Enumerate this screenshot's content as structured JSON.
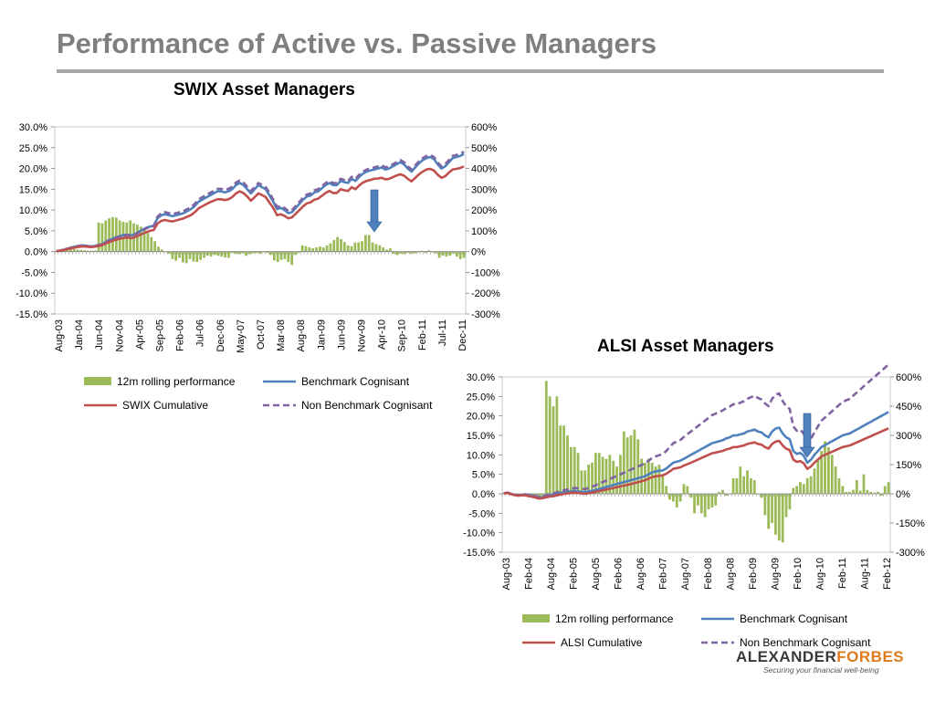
{
  "slide": {
    "title": "Performance of Active vs. Passive Managers"
  },
  "logo": {
    "brand_part1": "ALEXANDER",
    "brand_part2": "FORBES",
    "tagline": "Securing your financial well-being"
  },
  "chart_data": [
    {
      "type": "bar+line",
      "title": "SWIX Asset Managers",
      "x_labels": [
        "Aug-03",
        "Jan-04",
        "Jun-04",
        "Nov-04",
        "Apr-05",
        "Sep-05",
        "Feb-06",
        "Jul-06",
        "Dec-06",
        "May-07",
        "Oct-07",
        "Mar-08",
        "Aug-08",
        "Jan-09",
        "Jun-09",
        "Nov-09",
        "Apr-10",
        "Sep-10",
        "Feb-11",
        "Jul-11",
        "Dec-11"
      ],
      "y_left": {
        "range": [
          -15,
          30
        ],
        "ticks": [
          "-15.0%",
          "-10.0%",
          "-5.0%",
          "0.0%",
          "5.0%",
          "10.0%",
          "15.0%",
          "20.0%",
          "25.0%",
          "30.0%"
        ]
      },
      "y_right": {
        "range": [
          -300,
          600
        ],
        "ticks": [
          "-300%",
          "-200%",
          "-100%",
          "0%",
          "100%",
          "200%",
          "300%",
          "400%",
          "500%",
          "600%"
        ]
      },
      "annotation": "arrow pointing down near Apr-10",
      "series": [
        {
          "name": "12m rolling performance",
          "type": "bar",
          "axis": "left",
          "color": "#9bbb59",
          "values": [
            0.2,
            0.3,
            0.4,
            0.6,
            0.7,
            0.6,
            0.5,
            0.4,
            0.3,
            0.2,
            0.2,
            0.3,
            7.0,
            6.8,
            7.5,
            8.0,
            8.3,
            8.2,
            7.5,
            7.2,
            7.0,
            7.5,
            6.8,
            6.5,
            6.0,
            5.5,
            4.5,
            3.5,
            2.5,
            1.2,
            0.5,
            0.0,
            -0.5,
            -1.8,
            -2.2,
            -1.5,
            -2.6,
            -2.8,
            -1.8,
            -2.4,
            -2.5,
            -2.0,
            -1.5,
            -1.0,
            -1.2,
            -0.8,
            -1.0,
            -1.2,
            -1.4,
            -1.5,
            -0.3,
            -0.5,
            -0.6,
            -0.4,
            -1.0,
            -0.6,
            -0.4,
            -0.3,
            -0.5,
            -0.2,
            -0.3,
            -0.8,
            -2.1,
            -2.5,
            -2.0,
            -1.8,
            -2.5,
            -3.2,
            -0.8,
            -0.3,
            1.5,
            1.3,
            1.0,
            0.8,
            1.0,
            1.2,
            1.0,
            1.5,
            2.0,
            2.8,
            3.5,
            3.0,
            2.3,
            1.5,
            1.3,
            2.2,
            2.2,
            2.5,
            4.0,
            4.0,
            2.2,
            1.8,
            1.5,
            1.0,
            0.5,
            0.8,
            -0.5,
            -0.8,
            -0.5,
            -0.6,
            -0.3,
            -0.5,
            -0.4,
            -0.2,
            0.2,
            -0.3,
            0.3,
            -0.2,
            -0.4,
            -1.5,
            -1.0,
            -1.2,
            -1.0,
            -0.5,
            -1.2,
            -1.8,
            -1.5
          ]
        },
        {
          "name": "Benchmark Cognisant",
          "type": "line",
          "axis": "right",
          "color": "#4f81bd",
          "values": [
            2,
            5,
            10,
            15,
            20,
            25,
            28,
            30,
            28,
            25,
            27,
            30,
            35,
            45,
            55,
            62,
            70,
            75,
            80,
            82,
            78,
            85,
            95,
            105,
            115,
            120,
            125,
            160,
            175,
            180,
            175,
            170,
            175,
            180,
            185,
            195,
            205,
            220,
            240,
            250,
            260,
            270,
            280,
            290,
            290,
            285,
            290,
            300,
            320,
            330,
            320,
            300,
            280,
            300,
            320,
            310,
            300,
            270,
            240,
            205,
            210,
            200,
            185,
            190,
            210,
            230,
            250,
            265,
            270,
            285,
            290,
            305,
            320,
            330,
            320,
            320,
            340,
            335,
            330,
            350,
            340,
            360,
            375,
            385,
            390,
            395,
            400,
            405,
            395,
            400,
            410,
            420,
            430,
            420,
            400,
            385,
            405,
            425,
            440,
            450,
            455,
            445,
            420,
            400,
            410,
            430,
            450,
            455,
            460,
            470
          ]
        },
        {
          "name": "SWIX Cumulative",
          "type": "line",
          "axis": "right",
          "color": "#c0504d",
          "values": [
            2,
            5,
            8,
            12,
            16,
            20,
            23,
            25,
            24,
            22,
            23,
            26,
            30,
            38,
            45,
            52,
            58,
            62,
            66,
            68,
            65,
            70,
            78,
            86,
            94,
            100,
            104,
            135,
            148,
            152,
            148,
            145,
            150,
            155,
            160,
            168,
            176,
            190,
            208,
            218,
            228,
            237,
            245,
            252,
            252,
            248,
            252,
            262,
            280,
            290,
            282,
            265,
            245,
            262,
            280,
            272,
            262,
            235,
            210,
            175,
            180,
            172,
            160,
            165,
            182,
            200,
            218,
            232,
            237,
            250,
            255,
            268,
            282,
            292,
            282,
            282,
            300,
            295,
            292,
            310,
            300,
            318,
            332,
            340,
            345,
            350,
            352,
            355,
            348,
            350,
            358,
            366,
            372,
            365,
            350,
            338,
            355,
            372,
            385,
            395,
            398,
            390,
            370,
            355,
            362,
            380,
            395,
            398,
            402,
            410
          ]
        },
        {
          "name": "Non Benchmark Cognisant",
          "type": "line-dashed",
          "axis": "right",
          "color": "#8064a2",
          "values": [
            2,
            5,
            10,
            15,
            20,
            25,
            28,
            30,
            28,
            25,
            27,
            30,
            35,
            44,
            54,
            60,
            68,
            73,
            78,
            80,
            76,
            83,
            92,
            102,
            112,
            118,
            123,
            168,
            185,
            190,
            185,
            180,
            185,
            190,
            195,
            205,
            215,
            230,
            252,
            262,
            272,
            282,
            292,
            302,
            302,
            298,
            302,
            312,
            332,
            342,
            332,
            312,
            292,
            310,
            330,
            320,
            310,
            282,
            250,
            215,
            220,
            210,
            195,
            200,
            220,
            240,
            260,
            275,
            280,
            295,
            300,
            315,
            330,
            340,
            330,
            330,
            350,
            345,
            340,
            360,
            350,
            370,
            385,
            395,
            400,
            405,
            410,
            415,
            405,
            410,
            420,
            430,
            440,
            430,
            410,
            395,
            415,
            435,
            450,
            460,
            465,
            455,
            430,
            410,
            420,
            440,
            460,
            465,
            470,
            480
          ]
        }
      ],
      "legend": [
        "12m rolling performance",
        "Benchmark Cognisant",
        "SWIX Cumulative",
        "Non Benchmark Cognisant"
      ]
    },
    {
      "type": "bar+line",
      "title": "ALSI Asset Managers",
      "x_labels": [
        "Aug-03",
        "Feb-04",
        "Aug-04",
        "Feb-05",
        "Aug-05",
        "Feb-06",
        "Aug-06",
        "Feb-07",
        "Aug-07",
        "Feb-08",
        "Aug-08",
        "Feb-09",
        "Aug-09",
        "Feb-10",
        "Aug-10",
        "Feb-11",
        "Aug-11",
        "Feb-12"
      ],
      "y_left": {
        "range": [
          -15,
          30
        ],
        "ticks": [
          "-15.0%",
          "-10.0%",
          "-5.0%",
          "0.0%",
          "5.0%",
          "10.0%",
          "15.0%",
          "20.0%",
          "25.0%",
          "30.0%"
        ]
      },
      "y_right": {
        "range": [
          -300,
          600
        ],
        "ticks": [
          "-300%",
          "-150%",
          "0%",
          "150%",
          "300%",
          "450%",
          "600%"
        ]
      },
      "annotation": "arrow pointing down near Aug-10",
      "series": [
        {
          "name": "12m rolling performance",
          "type": "bar",
          "axis": "left",
          "color": "#9bbb59",
          "values": [
            0.3,
            0.4,
            0.2,
            -0.3,
            -0.5,
            -0.4,
            -0.3,
            -0.2,
            -0.4,
            -0.6,
            -0.8,
            -1.0,
            29.0,
            25.0,
            22.5,
            25.0,
            17.5,
            17.5,
            15.0,
            12.0,
            12.0,
            10.5,
            6.0,
            6.0,
            7.5,
            8.0,
            10.5,
            10.5,
            9.5,
            9.0,
            10.0,
            8.5,
            7.0,
            10.0,
            16.0,
            14.5,
            15.0,
            16.5,
            14.0,
            9.0,
            8.0,
            9.0,
            8.0,
            7.0,
            7.5,
            5.0,
            2.0,
            -1.5,
            -2.0,
            -3.5,
            -2.0,
            2.5,
            2.0,
            -1.0,
            -5.0,
            -3.0,
            -5.0,
            -6.0,
            -4.0,
            -3.5,
            -3.0,
            0.5,
            1.0,
            -0.5,
            0.0,
            4.0,
            4.0,
            7.0,
            4.5,
            6.0,
            4.0,
            3.5,
            0.0,
            -1.0,
            -5.5,
            -9.0,
            -7.5,
            -10.5,
            -12.0,
            -12.5,
            -6.0,
            -4.0,
            1.5,
            2.0,
            3.0,
            2.5,
            4.0,
            4.5,
            6.5,
            9.0,
            11.0,
            13.5,
            12.0,
            10.0,
            7.0,
            4.0,
            2.0,
            0.5,
            0.5,
            1.0,
            3.5,
            0.8,
            5.0,
            1.0,
            0.5,
            0.3,
            0.5,
            -0.5,
            2.0,
            3.0
          ]
        },
        {
          "name": "Benchmark Cognisant",
          "type": "line",
          "axis": "right",
          "color": "#4f81bd",
          "values": [
            3,
            5,
            0,
            -5,
            -8,
            -6,
            -5,
            -8,
            -10,
            -15,
            -20,
            -18,
            -12,
            -8,
            -5,
            0,
            5,
            8,
            10,
            12,
            15,
            12,
            10,
            8,
            12,
            15,
            20,
            25,
            30,
            35,
            40,
            45,
            50,
            55,
            60,
            65,
            70,
            75,
            80,
            85,
            90,
            100,
            110,
            115,
            118,
            120,
            130,
            145,
            160,
            165,
            170,
            180,
            190,
            200,
            210,
            220,
            230,
            240,
            250,
            260,
            265,
            270,
            275,
            285,
            290,
            300,
            300,
            305,
            310,
            320,
            325,
            330,
            320,
            315,
            300,
            290,
            320,
            335,
            340,
            310,
            290,
            280,
            220,
            205,
            210,
            195,
            160,
            175,
            200,
            220,
            240,
            250,
            260,
            270,
            280,
            290,
            300,
            305,
            310,
            320,
            330,
            340,
            350,
            360,
            370,
            380,
            390,
            400,
            410,
            420
          ]
        },
        {
          "name": "ALSI Cumulative",
          "type": "line",
          "axis": "right",
          "color": "#c0504d",
          "values": [
            2,
            4,
            -2,
            -6,
            -10,
            -8,
            -8,
            -12,
            -15,
            -20,
            -25,
            -22,
            -18,
            -14,
            -12,
            -8,
            -4,
            0,
            2,
            4,
            6,
            4,
            2,
            0,
            3,
            6,
            10,
            14,
            18,
            22,
            26,
            30,
            34,
            38,
            42,
            46,
            50,
            55,
            60,
            65,
            70,
            78,
            86,
            90,
            92,
            95,
            103,
            115,
            128,
            132,
            136,
            145,
            152,
            160,
            168,
            176,
            184,
            192,
            200,
            208,
            212,
            216,
            220,
            228,
            232,
            240,
            240,
            244,
            248,
            256,
            260,
            264,
            256,
            252,
            240,
            232,
            256,
            268,
            272,
            248,
            232,
            224,
            176,
            164,
            168,
            156,
            128,
            140,
            160,
            176,
            192,
            200,
            208,
            216,
            224,
            232,
            240,
            244,
            248,
            256,
            264,
            272,
            280,
            288,
            296,
            304,
            312,
            320,
            328,
            336
          ]
        },
        {
          "name": "Non Benchmark Cognisant",
          "type": "line-dashed",
          "axis": "right",
          "color": "#8064a2",
          "values": [
            3,
            6,
            2,
            -4,
            -8,
            -5,
            -3,
            -5,
            -8,
            -12,
            -16,
            -14,
            -8,
            -2,
            2,
            8,
            14,
            18,
            22,
            26,
            30,
            28,
            26,
            24,
            30,
            36,
            44,
            52,
            60,
            68,
            76,
            84,
            92,
            100,
            108,
            116,
            124,
            132,
            140,
            148,
            156,
            170,
            184,
            192,
            198,
            204,
            220,
            240,
            260,
            268,
            276,
            292,
            306,
            320,
            334,
            348,
            362,
            376,
            390,
            404,
            412,
            420,
            428,
            440,
            448,
            460,
            460,
            468,
            476,
            488,
            496,
            504,
            492,
            484,
            464,
            450,
            488,
            508,
            516,
            476,
            450,
            436,
            346,
            324,
            330,
            308,
            262,
            282,
            316,
            346,
            376,
            392,
            408,
            424,
            440,
            456,
            472,
            480,
            488,
            504,
            520,
            536,
            552,
            568,
            584,
            600,
            616,
            632,
            648,
            664
          ]
        }
      ],
      "legend": [
        "12m rolling performance",
        "Benchmark Cognisant",
        "ALSI Cumulative",
        "Non Benchmark Cognisant"
      ]
    }
  ]
}
